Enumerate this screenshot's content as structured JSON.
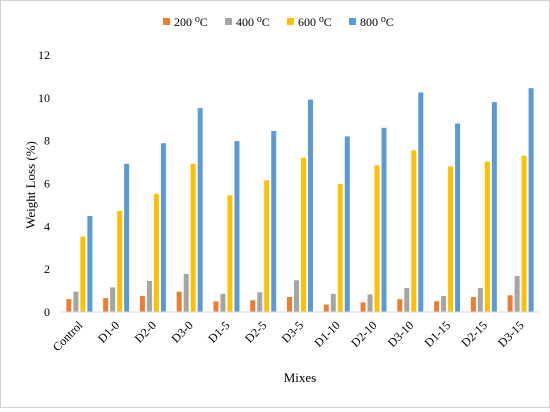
{
  "chart_data": {
    "type": "bar",
    "xlabel": "Mixes",
    "ylabel": "Weight Loss (%)",
    "ylim": [
      0,
      12
    ],
    "yticks": [
      0,
      2,
      4,
      6,
      8,
      10,
      12
    ],
    "grid": false,
    "legend_position": "top",
    "categories": [
      "Control",
      "D1-0",
      "D2-0",
      "D3-0",
      "D1-5",
      "D2-5",
      "D3-5",
      "D1-10",
      "D2-10",
      "D3-10",
      "D1-15",
      "D2-15",
      "D3-15"
    ],
    "series": [
      {
        "name": "200 ⁰C",
        "color": "#ED7D31",
        "values": [
          0.6,
          0.65,
          0.75,
          0.95,
          0.5,
          0.55,
          0.7,
          0.35,
          0.45,
          0.6,
          0.5,
          0.7,
          0.78
        ]
      },
      {
        "name": "400 ⁰C",
        "color": "#A5A5A5",
        "values": [
          0.95,
          1.15,
          1.45,
          1.78,
          0.85,
          0.92,
          1.48,
          0.85,
          0.82,
          1.12,
          0.75,
          1.12,
          1.68
        ]
      },
      {
        "name": "600 ⁰C",
        "color": "#FFC000",
        "values": [
          3.52,
          4.72,
          5.52,
          6.92,
          5.45,
          6.15,
          7.2,
          5.98,
          6.85,
          7.55,
          6.8,
          7.02,
          7.3
        ]
      },
      {
        "name": "800 ⁰C",
        "color": "#5B9BD5",
        "values": [
          4.48,
          6.92,
          7.88,
          9.52,
          7.98,
          8.45,
          9.92,
          8.2,
          8.6,
          10.25,
          8.8,
          9.8,
          10.45
        ]
      }
    ]
  }
}
